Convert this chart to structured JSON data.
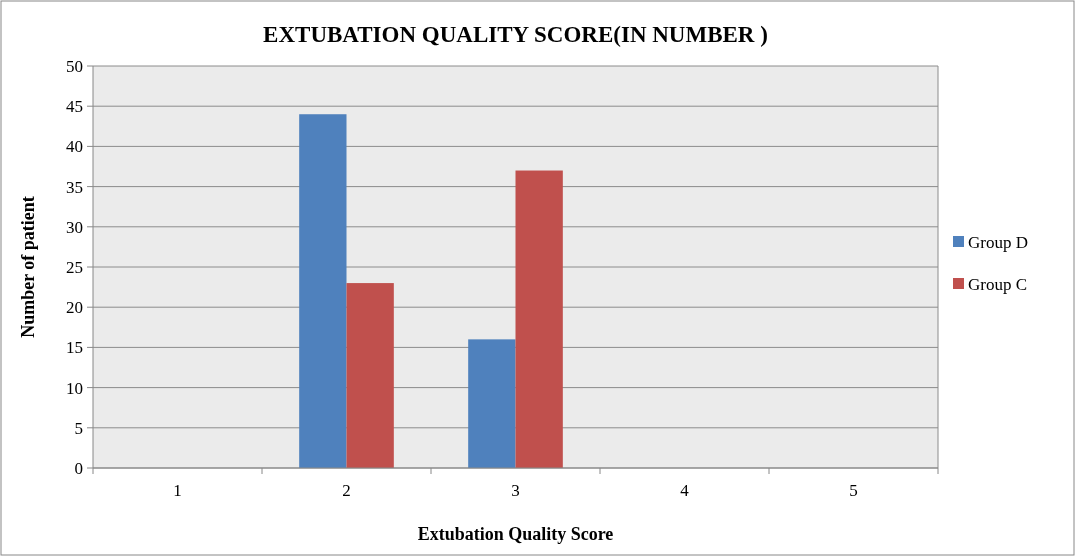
{
  "chart_data": {
    "type": "bar",
    "title": "EXTUBATION QUALITY SCORE(IN NUMBER )",
    "xlabel": "Extubation Quality Score",
    "ylabel": "Number of patient",
    "categories": [
      "1",
      "2",
      "3",
      "4",
      "5"
    ],
    "series": [
      {
        "name": "Group D",
        "color": "#4f81bd",
        "values": [
          0,
          44,
          16,
          0,
          0
        ]
      },
      {
        "name": "Group C",
        "color": "#c0504d",
        "values": [
          0,
          23,
          37,
          0,
          0
        ]
      }
    ],
    "ylim": [
      0,
      50
    ],
    "yticks": [
      0,
      5,
      10,
      15,
      20,
      25,
      30,
      35,
      40,
      45,
      50
    ],
    "grid": "y",
    "legend": "right"
  }
}
